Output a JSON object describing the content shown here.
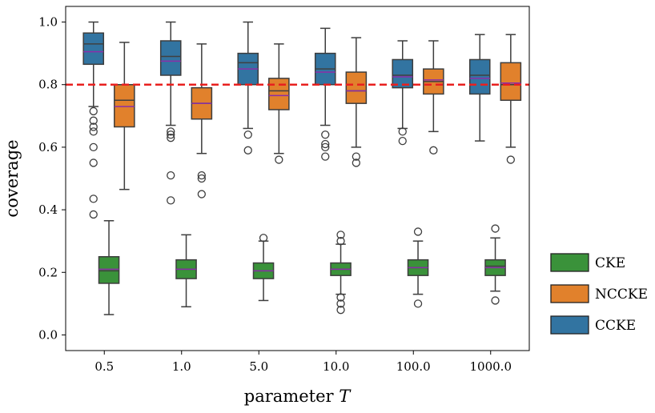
{
  "chart_data": {
    "type": "box",
    "xlabel": "parameter ",
    "xlabel_var": "T",
    "ylabel": "coverage",
    "categories": [
      "0.5",
      "1.0",
      "5.0",
      "10.0",
      "100.0",
      "1000.0"
    ],
    "ylim": [
      -0.05,
      1.05
    ],
    "yticks": [
      0.0,
      0.2,
      0.4,
      0.6,
      0.8,
      1.0
    ],
    "ytick_labels": [
      "0.0",
      "0.2",
      "0.4",
      "0.6",
      "0.8",
      "1.0"
    ],
    "reference_line": {
      "y": 0.8,
      "color": "#e8201f",
      "style": "dashed"
    },
    "grid": false,
    "legend_position": "outside-right",
    "series": [
      {
        "name": "CCKE",
        "color": "#3274a1",
        "boxes": [
          {
            "whislo": 0.73,
            "q1": 0.865,
            "med": 0.93,
            "q3": 0.965,
            "whishi": 1.0,
            "mean": 0.905,
            "fliers": [
              0.715,
              0.685,
              0.665,
              0.65,
              0.6,
              0.55,
              0.435,
              0.385
            ]
          },
          {
            "whislo": 0.67,
            "q1": 0.83,
            "med": 0.89,
            "q3": 0.94,
            "whishi": 1.0,
            "mean": 0.875,
            "fliers": [
              0.65,
              0.64,
              0.63,
              0.51,
              0.43
            ]
          },
          {
            "whislo": 0.66,
            "q1": 0.8,
            "med": 0.87,
            "q3": 0.9,
            "whishi": 1.0,
            "mean": 0.85,
            "fliers": [
              0.64,
              0.59
            ]
          },
          {
            "whislo": 0.67,
            "q1": 0.8,
            "med": 0.85,
            "q3": 0.9,
            "whishi": 0.98,
            "mean": 0.84,
            "fliers": [
              0.64,
              0.61,
              0.6,
              0.57
            ]
          },
          {
            "whislo": 0.66,
            "q1": 0.79,
            "med": 0.83,
            "q3": 0.88,
            "whishi": 0.94,
            "mean": 0.825,
            "fliers": [
              0.65,
              0.62
            ]
          },
          {
            "whislo": 0.62,
            "q1": 0.77,
            "med": 0.83,
            "q3": 0.88,
            "whishi": 0.96,
            "mean": 0.82,
            "fliers": []
          }
        ]
      },
      {
        "name": "NCCKE",
        "color": "#e1812c",
        "boxes": [
          {
            "whislo": 0.465,
            "q1": 0.665,
            "med": 0.75,
            "q3": 0.8,
            "whishi": 0.935,
            "mean": 0.73,
            "fliers": []
          },
          {
            "whislo": 0.58,
            "q1": 0.69,
            "med": 0.74,
            "q3": 0.79,
            "whishi": 0.93,
            "mean": 0.74,
            "fliers": [
              0.51,
              0.5,
              0.45
            ]
          },
          {
            "whislo": 0.58,
            "q1": 0.72,
            "med": 0.78,
            "q3": 0.82,
            "whishi": 0.93,
            "mean": 0.765,
            "fliers": [
              0.56
            ]
          },
          {
            "whislo": 0.6,
            "q1": 0.74,
            "med": 0.78,
            "q3": 0.84,
            "whishi": 0.95,
            "mean": 0.78,
            "fliers": [
              0.57,
              0.55
            ]
          },
          {
            "whislo": 0.65,
            "q1": 0.77,
            "med": 0.81,
            "q3": 0.85,
            "whishi": 0.94,
            "mean": 0.815,
            "fliers": [
              0.59
            ]
          },
          {
            "whislo": 0.6,
            "q1": 0.75,
            "med": 0.8,
            "q3": 0.87,
            "whishi": 0.96,
            "mean": 0.805,
            "fliers": [
              0.56
            ]
          }
        ]
      },
      {
        "name": "CKE",
        "color": "#3a923a",
        "boxes": [
          {
            "whislo": 0.065,
            "q1": 0.165,
            "med": 0.205,
            "q3": 0.25,
            "whishi": 0.365,
            "mean": 0.21,
            "fliers": []
          },
          {
            "whislo": 0.09,
            "q1": 0.18,
            "med": 0.21,
            "q3": 0.24,
            "whishi": 0.32,
            "mean": 0.21,
            "fliers": []
          },
          {
            "whislo": 0.11,
            "q1": 0.18,
            "med": 0.205,
            "q3": 0.23,
            "whishi": 0.3,
            "mean": 0.205,
            "fliers": [
              0.31
            ]
          },
          {
            "whislo": 0.13,
            "q1": 0.19,
            "med": 0.21,
            "q3": 0.23,
            "whishi": 0.29,
            "mean": 0.21,
            "fliers": [
              0.32,
              0.3,
              0.12,
              0.1,
              0.08
            ]
          },
          {
            "whislo": 0.13,
            "q1": 0.19,
            "med": 0.215,
            "q3": 0.24,
            "whishi": 0.3,
            "mean": 0.215,
            "fliers": [
              0.33,
              0.1
            ]
          },
          {
            "whislo": 0.14,
            "q1": 0.19,
            "med": 0.22,
            "q3": 0.24,
            "whishi": 0.31,
            "mean": 0.215,
            "fliers": [
              0.34,
              0.11
            ]
          }
        ]
      }
    ],
    "legend_order": [
      "CKE",
      "NCCKE",
      "CCKE"
    ],
    "mean_line_color": "#8b2fa8",
    "median_line_color": "#404040"
  }
}
